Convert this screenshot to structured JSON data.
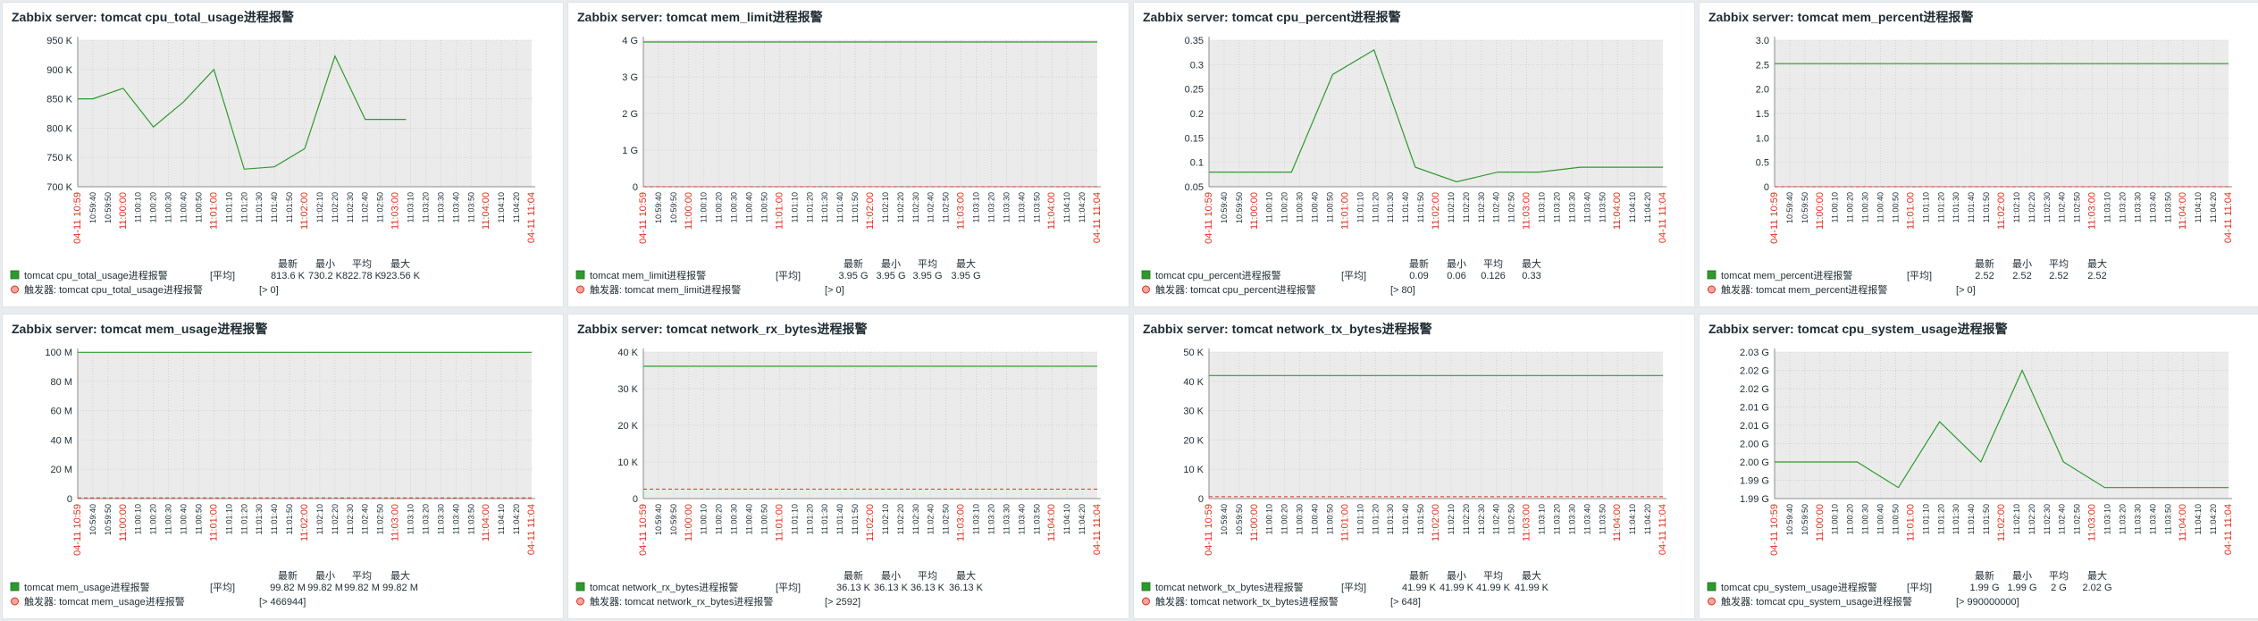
{
  "colors": {
    "plot_bg": "#ebebeb",
    "grid": "#c8c8c8",
    "series": "#2e9a2e",
    "trigger": "#e0301e",
    "time_red": "#e0301e",
    "text": "#1f2c33"
  },
  "time_axis": {
    "start_label": "04-11 10:59",
    "end_label": "04-11 11:04",
    "minor_labels": [
      "10:59:40",
      "10:59:50",
      "11:00:00",
      "11:00:10",
      "11:00:20",
      "11:00:30",
      "11:00:40",
      "11:00:50",
      "11:01:00",
      "11:01:10",
      "11:01:20",
      "11:01:30",
      "11:01:40",
      "11:01:50",
      "11:02:00",
      "11:02:10",
      "11:02:20",
      "11:02:30",
      "11:02:40",
      "11:02:50",
      "11:03:00",
      "11:03:10",
      "11:03:20",
      "11:03:30",
      "11:03:40",
      "11:03:50",
      "11:04:00",
      "11:04:10",
      "11:04:20"
    ],
    "red_labels": [
      "11:00:00",
      "11:01:00",
      "11:02:00",
      "11:03:00",
      "11:04:00"
    ]
  },
  "legend_headers": {
    "last": "最新",
    "min": "最小",
    "avg": "平均",
    "max": "最大",
    "func": "[平均]",
    "trigger_prefix": "触发器:"
  },
  "chart_data": [
    {
      "type": "line",
      "title": "Zabbix server: tomcat cpu_total_usage进程报警",
      "y_ticks": [
        "950 K",
        "900 K",
        "850 K",
        "800 K",
        "750 K",
        "700 K"
      ],
      "ylim": [
        700,
        950
      ],
      "x": [
        "10:59:30",
        "10:59:40",
        "11:00:00",
        "11:00:20",
        "11:00:40",
        "11:01:00",
        "11:01:20",
        "11:01:40",
        "11:02:00",
        "11:02:20",
        "11:02:40",
        "11:02:56",
        "11:03:07"
      ],
      "series": [
        {
          "name": "tomcat cpu_total_usage进程报警",
          "values": [
            850,
            850,
            868,
            802,
            845,
            900,
            730,
            734,
            765,
            923,
            815,
            815,
            815
          ]
        }
      ],
      "legend": {
        "name": "tomcat cpu_total_usage进程报警",
        "last": "813.6 K",
        "min": "730.2 K",
        "avg": "822.78 K",
        "max": "923.56 K"
      },
      "trigger": {
        "text": "tomcat cpu_total_usage进程报警",
        "condition": "[> 0]",
        "value": 0
      }
    },
    {
      "type": "line",
      "title": "Zabbix server: tomcat mem_limit进程报警",
      "y_ticks": [
        "4 G",
        "3 G",
        "2 G",
        "1 G",
        "0"
      ],
      "ylim": [
        0,
        4
      ],
      "series": [
        {
          "name": "tomcat mem_limit进程报警",
          "values": [
            3.95,
            3.95
          ]
        }
      ],
      "legend": {
        "name": "tomcat mem_limit进程报警",
        "last": "3.95 G",
        "min": "3.95 G",
        "avg": "3.95 G",
        "max": "3.95 G"
      },
      "trigger": {
        "text": "tomcat mem_limit进程报警",
        "condition": "[> 0]",
        "value": 0
      }
    },
    {
      "type": "line",
      "title": "Zabbix server: tomcat cpu_percent进程报警",
      "y_ticks": [
        "0.35",
        "0.3",
        "0.25",
        "0.2",
        "0.15",
        "0.1",
        "0.05"
      ],
      "ylim": [
        0.05,
        0.35
      ],
      "series": [
        {
          "name": "tomcat cpu_percent进程报警",
          "values": [
            0.08,
            0.08,
            0.08,
            0.28,
            0.33,
            0.09,
            0.06,
            0.08,
            0.08,
            0.09,
            0.09,
            0.09
          ]
        }
      ],
      "legend": {
        "name": "tomcat cpu_percent进程报警",
        "last": "0.09",
        "min": "0.06",
        "avg": "0.126",
        "max": "0.33"
      },
      "trigger": {
        "text": "tomcat cpu_percent进程报警",
        "condition": "[> 80]",
        "value": 80
      }
    },
    {
      "type": "line",
      "title": "Zabbix server: tomcat mem_percent进程报警",
      "y_ticks": [
        "3.0",
        "2.5",
        "2.0",
        "1.5",
        "1.0",
        "0.5",
        "0"
      ],
      "ylim": [
        0,
        3
      ],
      "series": [
        {
          "name": "tomcat mem_percent进程报警",
          "values": [
            2.52,
            2.52
          ]
        }
      ],
      "legend": {
        "name": "tomcat mem_percent进程报警",
        "last": "2.52",
        "min": "2.52",
        "avg": "2.52",
        "max": "2.52"
      },
      "trigger": {
        "text": "tomcat mem_percent进程报警",
        "condition": "[> 0]",
        "value": 0
      }
    },
    {
      "type": "line",
      "title": "Zabbix server: tomcat mem_usage进程报警",
      "y_ticks": [
        "100 M",
        "80 M",
        "60 M",
        "40 M",
        "20 M",
        "0"
      ],
      "ylim": [
        0,
        100
      ],
      "series": [
        {
          "name": "tomcat mem_usage进程报警",
          "values": [
            99.82,
            99.82
          ]
        }
      ],
      "legend": {
        "name": "tomcat mem_usage进程报警",
        "last": "99.82 M",
        "min": "99.82 M",
        "avg": "99.82 M",
        "max": "99.82 M"
      },
      "trigger": {
        "text": "tomcat mem_usage进程报警",
        "condition": "[> 466944]",
        "value": 0.466944
      }
    },
    {
      "type": "line",
      "title": "Zabbix server: tomcat network_rx_bytes进程报警",
      "y_ticks": [
        "40 K",
        "30 K",
        "20 K",
        "10 K",
        "0"
      ],
      "ylim": [
        0,
        40
      ],
      "series": [
        {
          "name": "tomcat network_rx_bytes进程报警",
          "values": [
            36.13,
            36.13
          ]
        }
      ],
      "legend": {
        "name": "tomcat network_rx_bytes进程报警",
        "last": "36.13 K",
        "min": "36.13 K",
        "avg": "36.13 K",
        "max": "36.13 K"
      },
      "trigger": {
        "text": "tomcat network_rx_bytes进程报警",
        "condition": "[> 2592]",
        "value": 2.592
      }
    },
    {
      "type": "line",
      "title": "Zabbix server: tomcat network_tx_bytes进程报警",
      "y_ticks": [
        "50 K",
        "40 K",
        "30 K",
        "20 K",
        "10 K",
        "0"
      ],
      "ylim": [
        0,
        50
      ],
      "series": [
        {
          "name": "tomcat network_tx_bytes进程报警",
          "values": [
            41.99,
            41.99
          ]
        }
      ],
      "legend": {
        "name": "tomcat network_tx_bytes进程报警",
        "last": "41.99 K",
        "min": "41.99 K",
        "avg": "41.99 K",
        "max": "41.99 K"
      },
      "trigger": {
        "text": "tomcat network_tx_bytes进程报警",
        "condition": "[> 648]",
        "value": 0.648
      }
    },
    {
      "type": "line",
      "title": "Zabbix server: tomcat cpu_system_usage进程报警",
      "y_ticks": [
        "2.03 G",
        "2.02 G",
        "2.02 G",
        "2.01 G",
        "2.01 G",
        "2.00 G",
        "2.00 G",
        "1.99 G",
        "1.99 G"
      ],
      "ylim": [
        1.99,
        2.03
      ],
      "series": [
        {
          "name": "tomcat cpu_system_usage进程报警",
          "values": [
            2.0,
            2.0,
            2.0,
            1.993,
            2.011,
            2.0,
            2.025,
            2.0,
            1.993,
            1.993,
            1.993,
            1.993
          ]
        }
      ],
      "legend": {
        "name": "tomcat cpu_system_usage进程报警",
        "last": "1.99 G",
        "min": "1.99 G",
        "avg": "2 G",
        "max": "2.02 G"
      },
      "trigger": {
        "text": "tomcat cpu_system_usage进程报警",
        "condition": "[> 990000000]",
        "value": 0.99
      }
    }
  ]
}
